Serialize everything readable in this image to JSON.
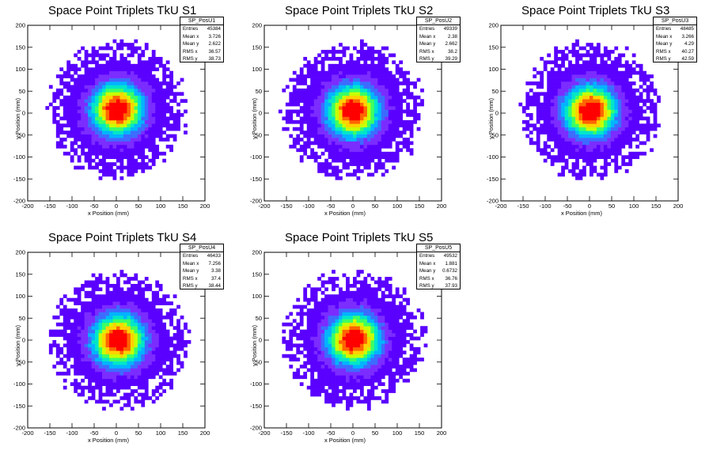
{
  "chart_data": [
    {
      "type": "heatmap",
      "title": "Space Point Triplets TkU S1",
      "xlabel": "x Position (mm)",
      "ylabel": "y Position (mm)",
      "xlim": [
        -200,
        200
      ],
      "ylim": [
        -200,
        200
      ],
      "xticks": [
        -200,
        -150,
        -100,
        -50,
        0,
        50,
        100,
        150,
        200
      ],
      "yticks": [
        -200,
        -150,
        -100,
        -50,
        0,
        50,
        100,
        150,
        200
      ],
      "stats": {
        "name": "SP_PosU1",
        "entries": "45384",
        "mean_x": "3.726",
        "mean_y": "2.622",
        "rms_x": "36.57",
        "rms_y": "38.73"
      },
      "extent": {
        "radius": 160,
        "peak": [
          2,
          8
        ]
      }
    },
    {
      "type": "heatmap",
      "title": "Space Point Triplets TkU S2",
      "xlabel": "x Position (mm)",
      "ylabel": "y Position (mm)",
      "xlim": [
        -200,
        200
      ],
      "ylim": [
        -200,
        200
      ],
      "xticks": [
        -200,
        -150,
        -100,
        -50,
        0,
        50,
        100,
        150,
        200
      ],
      "yticks": [
        -200,
        -150,
        -100,
        -50,
        0,
        50,
        100,
        150,
        200
      ],
      "stats": {
        "name": "SP_PosU2",
        "entries": "49339",
        "mean_x": "2.38",
        "mean_y": "2.662",
        "rms_x": "38.2",
        "rms_y": "39.29"
      },
      "extent": {
        "radius": 160,
        "peak": [
          0,
          5
        ]
      }
    },
    {
      "type": "heatmap",
      "title": "Space Point Triplets TkU S3",
      "xlabel": "x Position (mm)",
      "ylabel": "y Position (mm)",
      "xlim": [
        -200,
        200
      ],
      "ylim": [
        -200,
        200
      ],
      "xticks": [
        -200,
        -150,
        -100,
        -50,
        0,
        50,
        100,
        150,
        200
      ],
      "yticks": [
        -200,
        -150,
        -100,
        -50,
        0,
        50,
        100,
        150,
        200
      ],
      "stats": {
        "name": "SP_PosU3",
        "entries": "48485",
        "mean_x": "3.266",
        "mean_y": "4.29",
        "rms_x": "40.27",
        "rms_y": "42.59"
      },
      "extent": {
        "radius": 160,
        "peak": [
          2,
          5
        ]
      }
    },
    {
      "type": "heatmap",
      "title": "Space Point Triplets TkU S4",
      "xlabel": "x Position (mm)",
      "ylabel": "y Position (mm)",
      "xlim": [
        -200,
        200
      ],
      "ylim": [
        -200,
        200
      ],
      "xticks": [
        -200,
        -150,
        -100,
        -50,
        0,
        50,
        100,
        150,
        200
      ],
      "yticks": [
        -200,
        -150,
        -100,
        -50,
        0,
        50,
        100,
        150,
        200
      ],
      "stats": {
        "name": "SP_PosU4",
        "entries": "46433",
        "mean_x": "7.256",
        "mean_y": "3.38",
        "rms_x": "37.4",
        "rms_y": "38.44"
      },
      "extent": {
        "radius": 160,
        "peak": [
          5,
          0
        ]
      }
    },
    {
      "type": "heatmap",
      "title": "Space Point Triplets TkU S5",
      "xlabel": "x Position (mm)",
      "ylabel": "y Position (mm)",
      "xlim": [
        -200,
        200
      ],
      "ylim": [
        -200,
        200
      ],
      "xticks": [
        -200,
        -150,
        -100,
        -50,
        0,
        50,
        100,
        150,
        200
      ],
      "yticks": [
        -200,
        -150,
        -100,
        -50,
        0,
        50,
        100,
        150,
        200
      ],
      "stats": {
        "name": "SP_PosU5",
        "entries": "49532",
        "mean_x": "1.881",
        "mean_y": "0.6732",
        "rms_x": "36.76",
        "rms_y": "37.93"
      },
      "extent": {
        "radius": 160,
        "peak": [
          2,
          2
        ]
      }
    }
  ],
  "stats_labels": {
    "entries": "Entries",
    "mean_x": "Mean x",
    "mean_y": "Mean y",
    "rms_x": "RMS x",
    "rms_y": "RMS y"
  },
  "colors": {
    "frame": "#000000",
    "background": "#ffffff",
    "palette": [
      "#5a00ff",
      "#7b2cff",
      "#3c6cff",
      "#00b4ff",
      "#00e6c8",
      "#3cff64",
      "#c8ff00",
      "#ffd200",
      "#ff6400",
      "#ff0000"
    ]
  }
}
